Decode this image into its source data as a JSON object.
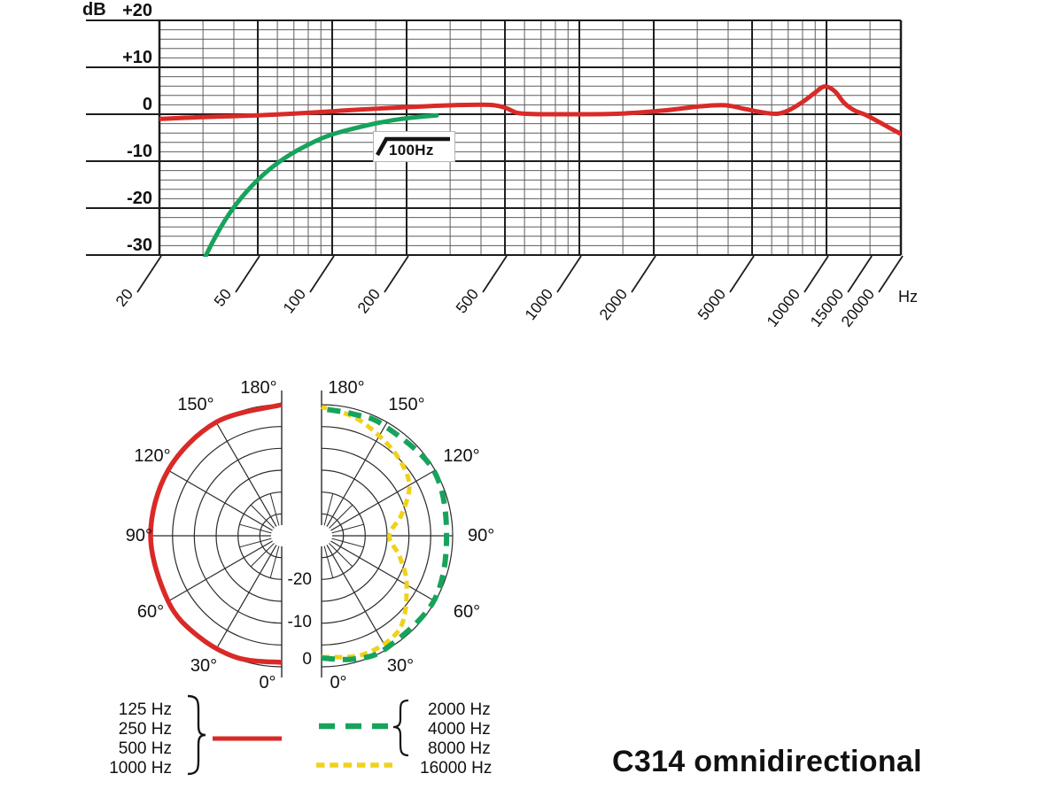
{
  "title": "C314 omnidirectional",
  "frequency_chart": {
    "y_axis_unit": "dB",
    "x_axis_unit": "Hz",
    "filter_annotation": {
      "label": "100Hz",
      "icon": "high-pass-filter-icon"
    }
  },
  "legend": {
    "left_group": {
      "labels": [
        "125 Hz",
        "250 Hz",
        "500 Hz",
        "1000 Hz"
      ],
      "line_style": "solid",
      "color": "#d92a28"
    },
    "right_group_green": {
      "labels": [
        "2000 Hz",
        "4000 Hz",
        "8000 Hz"
      ],
      "line_style": "dashed-long",
      "color": "#17a35c"
    },
    "right_group_yellow": {
      "labels": [
        "16000 Hz"
      ],
      "line_style": "dashed-short",
      "color": "#f0d11c"
    }
  },
  "colors": {
    "text": "#111111",
    "grid_major": "#1d1d1d",
    "grid_minor": "#5d5d5d",
    "polar_grid": "#2b2b2b",
    "red": "#d92a28",
    "green": "#17a35c",
    "yellow": "#f0d11c"
  },
  "chart_data": [
    {
      "type": "line",
      "title": "frequency response",
      "xlabel": "Hz",
      "ylabel": "dB",
      "x_scale": "log",
      "xlim": [
        20,
        20000
      ],
      "ylim": [
        -30,
        20
      ],
      "grid": true,
      "x_tick_labels": [
        "20",
        "50",
        "100",
        "200",
        "500",
        "1000",
        "2000",
        "5000",
        "10000",
        "15000",
        "20000"
      ],
      "x_tick_values": [
        20,
        50,
        100,
        200,
        500,
        1000,
        2000,
        5000,
        10000,
        15000,
        20000
      ],
      "x_major_gridlines": [
        20,
        50,
        100,
        200,
        500,
        1000,
        2000,
        5000,
        10000,
        20000
      ],
      "x_minor_gridlines": [
        30,
        40,
        60,
        70,
        80,
        90,
        150,
        300,
        400,
        600,
        700,
        800,
        900,
        1500,
        3000,
        4000,
        6000,
        7000,
        8000,
        9000,
        15000
      ],
      "y_tick_labels": [
        "+20",
        "+10",
        "0",
        "-10",
        "-20",
        "-30"
      ],
      "y_tick_values": [
        20,
        10,
        0,
        -10,
        -20,
        -30
      ],
      "y_minor_step": 2,
      "series": [
        {
          "name": "frequency-response",
          "color": "#d92a28",
          "style": "solid",
          "width": 5,
          "points": [
            [
              20,
              -1
            ],
            [
              30,
              -0.6
            ],
            [
              50,
              -0.25
            ],
            [
              80,
              0.3
            ],
            [
              120,
              0.9
            ],
            [
              200,
              1.5
            ],
            [
              300,
              1.9
            ],
            [
              430,
              2
            ],
            [
              500,
              1.4
            ],
            [
              560,
              0.3
            ],
            [
              650,
              0.05
            ],
            [
              800,
              0
            ],
            [
              1000,
              0
            ],
            [
              1500,
              0.15
            ],
            [
              2200,
              0.8
            ],
            [
              3100,
              1.7
            ],
            [
              3900,
              1.9
            ],
            [
              4700,
              1.1
            ],
            [
              5500,
              0.4
            ],
            [
              6300,
              0.1
            ],
            [
              7000,
              0.8
            ],
            [
              8000,
              2.6
            ],
            [
              9000,
              4.6
            ],
            [
              9800,
              5.9
            ],
            [
              10800,
              4.9
            ],
            [
              11800,
              2.4
            ],
            [
              13000,
              0.8
            ],
            [
              14500,
              -0.2
            ],
            [
              16500,
              -1.8
            ],
            [
              18000,
              -2.9
            ],
            [
              20000,
              -4.2
            ]
          ]
        },
        {
          "name": "low-cut-filter-100Hz",
          "color": "#17a35c",
          "style": "solid",
          "width": 5,
          "points": [
            [
              29,
              -33
            ],
            [
              33,
              -27
            ],
            [
              38,
              -21.5
            ],
            [
              45,
              -16.5
            ],
            [
              55,
              -12
            ],
            [
              68,
              -8.5
            ],
            [
              85,
              -5.8
            ],
            [
              100,
              -4.3
            ],
            [
              125,
              -2.9
            ],
            [
              155,
              -1.8
            ],
            [
              190,
              -1
            ],
            [
              230,
              -0.5
            ],
            [
              265,
              -0.25
            ]
          ]
        }
      ]
    },
    {
      "type": "polar",
      "title": "polar pattern",
      "db_rings": [
        0,
        -5,
        -10,
        -15,
        -20,
        -25
      ],
      "ring_labels": [
        "0",
        "-10",
        "-20"
      ],
      "angle_labels": [
        "0°",
        "30°",
        "60°",
        "90°",
        "120°",
        "150°",
        "180°"
      ],
      "halves": [
        {
          "side": "left",
          "series": [
            {
              "name": "125-1000Hz",
              "color": "#d92a28",
              "dash": "solid",
              "width": 5.5,
              "points": [
                [
                  0,
                  -1
                ],
                [
                  20,
                  -0.3
                ],
                [
                  40,
                  -0.1
                ],
                [
                  60,
                  0
                ],
                [
                  90,
                  0
                ],
                [
                  120,
                  0
                ],
                [
                  150,
                  0
                ],
                [
                  180,
                  0
                ]
              ]
            }
          ]
        },
        {
          "side": "right",
          "series": [
            {
              "name": "16000Hz",
              "color": "#f0d11c",
              "dash": "short",
              "width": 5,
              "points": [
                [
                  0,
                  -2.2
                ],
                [
                  20,
                  -1.2
                ],
                [
                  40,
                  -2.2
                ],
                [
                  60,
                  -7.5
                ],
                [
                  75,
                  -11.5
                ],
                [
                  90,
                  -14.5
                ],
                [
                  105,
                  -11
                ],
                [
                  120,
                  -6.8
                ],
                [
                  135,
                  -5
                ],
                [
                  150,
                  -3.6
                ],
                [
                  165,
                  -1.8
                ],
                [
                  180,
                  -0.5
                ]
              ]
            },
            {
              "name": "2000-8000Hz",
              "color": "#17a35c",
              "dash": "long",
              "width": 6,
              "points": [
                [
                  0,
                  -2
                ],
                [
                  15,
                  -0.8
                ],
                [
                  30,
                  -0.3
                ],
                [
                  60,
                  -0.3
                ],
                [
                  90,
                  -1.4
                ],
                [
                  120,
                  -0.3
                ],
                [
                  150,
                  -1
                ],
                [
                  165,
                  -1.2
                ],
                [
                  180,
                  -0.9
                ]
              ]
            }
          ]
        }
      ]
    }
  ]
}
